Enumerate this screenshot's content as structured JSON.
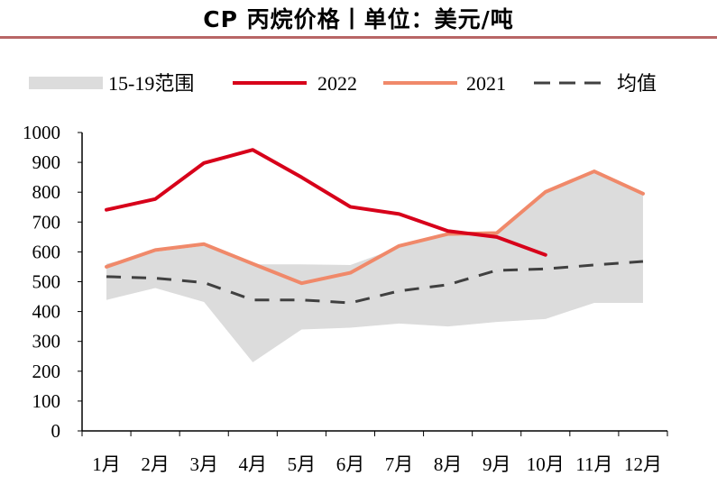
{
  "chart_data": {
    "type": "line",
    "title": "CP 丙烷价格丨单位：美元/吨",
    "xlabel": "",
    "ylabel": "",
    "ylim": [
      0,
      1000
    ],
    "yticks": [
      0,
      100,
      200,
      300,
      400,
      500,
      600,
      700,
      800,
      900,
      1000
    ],
    "categories": [
      "1月",
      "2月",
      "3月",
      "4月",
      "5月",
      "6月",
      "7月",
      "8月",
      "9月",
      "10月",
      "11月",
      "12月"
    ],
    "legend_position": "top",
    "grid": false,
    "band": {
      "name": "15-19范围",
      "color": "#dcdcdc",
      "upper": [
        560,
        600,
        620,
        558,
        558,
        556,
        615,
        655,
        660,
        800,
        870,
        795
      ],
      "lower": [
        439,
        479,
        432,
        230,
        340,
        346,
        360,
        350,
        365,
        375,
        429,
        429
      ]
    },
    "series": [
      {
        "name": "2022",
        "color": "#d7001a",
        "style": "solid",
        "values": [
          741,
          777,
          898,
          942,
          850,
          751,
          727,
          670,
          650,
          590,
          null,
          null
        ]
      },
      {
        "name": "2021",
        "color": "#f0896a",
        "style": "solid",
        "values": [
          550,
          606,
          626,
          560,
          495,
          530,
          620,
          660,
          663,
          801,
          870,
          795
        ]
      },
      {
        "name": "均值",
        "color": "#404040",
        "style": "dashed",
        "values": [
          517,
          512,
          497,
          439,
          439,
          429,
          469,
          490,
          538,
          543,
          556,
          568
        ]
      }
    ]
  }
}
